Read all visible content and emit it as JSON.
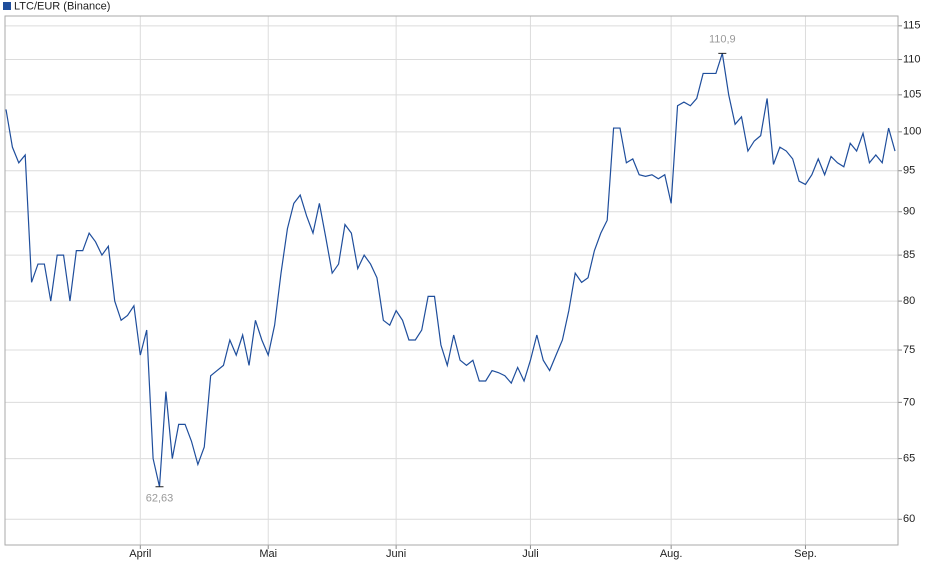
{
  "chart_data": {
    "type": "line",
    "log_scale": true,
    "grid": true,
    "ylim": [
      58,
      116.5
    ],
    "yticks": [
      60,
      65,
      70,
      75,
      80,
      85,
      90,
      95,
      100,
      105,
      110,
      115
    ],
    "categories": [
      null,
      null,
      null,
      null,
      null,
      null,
      null,
      null,
      null,
      null,
      null,
      null,
      null,
      null,
      null,
      null,
      null,
      null,
      null,
      null,
      null,
      "April",
      null,
      null,
      null,
      null,
      null,
      null,
      null,
      null,
      null,
      null,
      null,
      null,
      null,
      null,
      null,
      null,
      null,
      null,
      null,
      "Mai",
      null,
      null,
      null,
      null,
      null,
      null,
      null,
      null,
      null,
      null,
      null,
      null,
      null,
      null,
      null,
      null,
      null,
      null,
      null,
      "Juni",
      null,
      null,
      null,
      null,
      null,
      null,
      null,
      null,
      null,
      null,
      null,
      null,
      null,
      null,
      null,
      null,
      null,
      null,
      null,
      null,
      "Juli",
      null,
      null,
      null,
      null,
      null,
      null,
      null,
      null,
      null,
      null,
      null,
      null,
      null,
      null,
      null,
      null,
      null,
      null,
      null,
      null,
      null,
      "Aug.",
      null,
      null,
      null,
      null,
      null,
      null,
      null,
      null,
      null,
      null,
      null,
      null,
      null,
      null,
      null,
      null,
      null,
      null,
      null,
      null,
      "Sep.",
      null,
      null,
      null,
      null,
      null,
      null,
      null,
      null,
      null,
      null,
      null,
      null,
      null,
      null
    ],
    "series": [
      {
        "name": "LTC/EUR (Binance)",
        "color": "#1f4e9c",
        "values": [
          103,
          98,
          96,
          97,
          82,
          84,
          84,
          80,
          85,
          85,
          80,
          85.5,
          85.5,
          87.5,
          86.5,
          85,
          86,
          80,
          78,
          78.5,
          79.5,
          74.5,
          77,
          65,
          62.63,
          71,
          65,
          68,
          68,
          66.5,
          64.5,
          66,
          72.5,
          73,
          73.5,
          76,
          74.5,
          76.5,
          73.5,
          78,
          76,
          74.5,
          77.5,
          83,
          88,
          91,
          92,
          89.5,
          87.5,
          91,
          87,
          83,
          84,
          88.5,
          87.5,
          83.5,
          85,
          84,
          82.5,
          78,
          77.5,
          79,
          78,
          76,
          76,
          77,
          80.5,
          80.5,
          75.5,
          73.5,
          76.5,
          74,
          73.5,
          74,
          72,
          72,
          73,
          72.8,
          72.5,
          71.8,
          73.3,
          72,
          74,
          76.5,
          74,
          73,
          74.5,
          76,
          79,
          83,
          82,
          82.5,
          85.5,
          87.5,
          89,
          100.5,
          100.5,
          96,
          96.5,
          94.5,
          94.3,
          94.5,
          94,
          94.5,
          91,
          103.5,
          104,
          103.5,
          104.5,
          108,
          108,
          108,
          110.9,
          105,
          101,
          102,
          97.5,
          98.8,
          99.5,
          104.5,
          95.8,
          98,
          97.5,
          96.5,
          93.7,
          93.3,
          94.5,
          96.5,
          94.5,
          96.8,
          96,
          95.5,
          98.5,
          97.5,
          99.8,
          96,
          97,
          96,
          100.5,
          97.5
        ],
        "value_labels": [
          null,
          null,
          null,
          null,
          null,
          null,
          null,
          null,
          null,
          null,
          null,
          null,
          null,
          null,
          null,
          null,
          null,
          null,
          null,
          null,
          null,
          null,
          null,
          null,
          "62,63",
          null,
          null,
          null,
          null,
          null,
          null,
          null,
          null,
          null,
          null,
          null,
          null,
          null,
          null,
          null,
          null,
          null,
          null,
          null,
          null,
          null,
          null,
          null,
          null,
          null,
          null,
          null,
          null,
          null,
          null,
          null,
          null,
          null,
          null,
          null,
          null,
          null,
          null,
          null,
          null,
          null,
          null,
          null,
          null,
          null,
          null,
          null,
          null,
          null,
          null,
          null,
          null,
          null,
          null,
          null,
          null,
          null,
          null,
          null,
          null,
          null,
          null,
          null,
          null,
          null,
          null,
          null,
          null,
          null,
          null,
          null,
          null,
          null,
          null,
          null,
          null,
          null,
          null,
          null,
          null,
          null,
          null,
          null,
          null,
          null,
          null,
          null,
          "110,9",
          null,
          null,
          null,
          null,
          null,
          null,
          null,
          null,
          null,
          null,
          null,
          null,
          null,
          null,
          null,
          null,
          null,
          null,
          null,
          null,
          null,
          null,
          null,
          null,
          null,
          null,
          null
        ]
      }
    ]
  }
}
